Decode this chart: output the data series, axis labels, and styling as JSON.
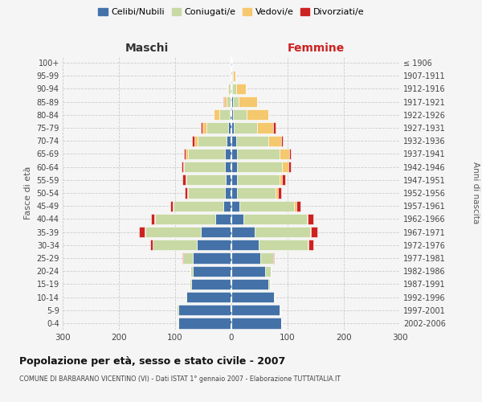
{
  "age_groups": [
    "0-4",
    "5-9",
    "10-14",
    "15-19",
    "20-24",
    "25-29",
    "30-34",
    "35-39",
    "40-44",
    "45-49",
    "50-54",
    "55-59",
    "60-64",
    "65-69",
    "70-74",
    "75-79",
    "80-84",
    "85-89",
    "90-94",
    "95-99",
    "100+"
  ],
  "birth_years": [
    "2002-2006",
    "1997-2001",
    "1992-1996",
    "1987-1991",
    "1982-1986",
    "1977-1981",
    "1972-1976",
    "1967-1971",
    "1962-1966",
    "1957-1961",
    "1952-1956",
    "1947-1951",
    "1942-1946",
    "1937-1941",
    "1932-1936",
    "1927-1931",
    "1922-1926",
    "1917-1921",
    "1912-1916",
    "1907-1911",
    "≤ 1906"
  ],
  "maschi_celibi": [
    95,
    95,
    80,
    72,
    68,
    68,
    62,
    55,
    28,
    15,
    12,
    10,
    12,
    12,
    8,
    6,
    3,
    2,
    2,
    1,
    1
  ],
  "maschi_coniugati": [
    1,
    2,
    2,
    3,
    5,
    18,
    78,
    98,
    108,
    88,
    65,
    70,
    72,
    65,
    52,
    38,
    18,
    6,
    4,
    1,
    0
  ],
  "maschi_vedovi": [
    0,
    0,
    0,
    0,
    0,
    0,
    0,
    1,
    1,
    1,
    1,
    1,
    2,
    4,
    6,
    8,
    10,
    5,
    1,
    0,
    0
  ],
  "maschi_divorziati": [
    0,
    0,
    0,
    0,
    0,
    1,
    5,
    10,
    6,
    5,
    5,
    6,
    3,
    3,
    4,
    3,
    1,
    1,
    0,
    0,
    0
  ],
  "femmine_nubili": [
    88,
    85,
    75,
    65,
    60,
    52,
    48,
    42,
    22,
    14,
    10,
    10,
    10,
    10,
    8,
    4,
    3,
    3,
    2,
    1,
    1
  ],
  "femmine_coniugate": [
    1,
    2,
    2,
    4,
    10,
    22,
    88,
    98,
    112,
    98,
    68,
    75,
    80,
    75,
    58,
    42,
    24,
    10,
    6,
    2,
    0
  ],
  "femmine_vedove": [
    0,
    0,
    0,
    0,
    0,
    0,
    1,
    1,
    2,
    3,
    5,
    5,
    12,
    18,
    22,
    28,
    38,
    32,
    18,
    4,
    0
  ],
  "femmine_divorziate": [
    0,
    0,
    0,
    0,
    0,
    1,
    8,
    12,
    10,
    8,
    5,
    5,
    3,
    3,
    4,
    4,
    1,
    1,
    0,
    0,
    0
  ],
  "colors": {
    "celibi": "#4472a8",
    "coniugati": "#c8d9a4",
    "vedovi": "#f5c86e",
    "divorziati": "#cc2222"
  },
  "title": "Popolazione per età, sesso e stato civile - 2007",
  "subtitle": "COMUNE DI BARBARANO VICENTINO (VI) - Dati ISTAT 1° gennaio 2007 - Elaborazione TUTTAITALIA.IT",
  "xlabel_left": "Maschi",
  "xlabel_right": "Femmine",
  "ylabel_left": "Fasce di età",
  "ylabel_right": "Anni di nascita",
  "xlim": 300,
  "legend_labels": [
    "Celibi/Nubili",
    "Coniugati/e",
    "Vedovi/e",
    "Divorziati/e"
  ]
}
